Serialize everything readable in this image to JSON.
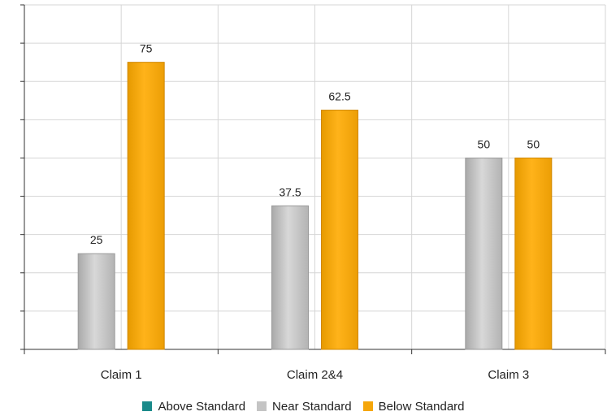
{
  "chart_data": {
    "type": "bar",
    "categories": [
      "Claim 1",
      "Claim 2&4",
      "Claim 3"
    ],
    "series": [
      {
        "name": "Above Standard",
        "color": "#1a8a8a",
        "values": [
          0,
          0,
          0
        ]
      },
      {
        "name": "Near Standard",
        "color": "#c4c4c4",
        "values": [
          25,
          37.5,
          50
        ]
      },
      {
        "name": "Below Standard",
        "color": "#f5a60a",
        "values": [
          75,
          62.5,
          50
        ]
      }
    ],
    "data_labels": [
      [
        "",
        "",
        ""
      ],
      [
        "25",
        "37.5",
        "50"
      ],
      [
        "75",
        "62.5",
        "50"
      ]
    ],
    "ylim": [
      0,
      90
    ],
    "grid": true,
    "legend_position": "bottom"
  }
}
